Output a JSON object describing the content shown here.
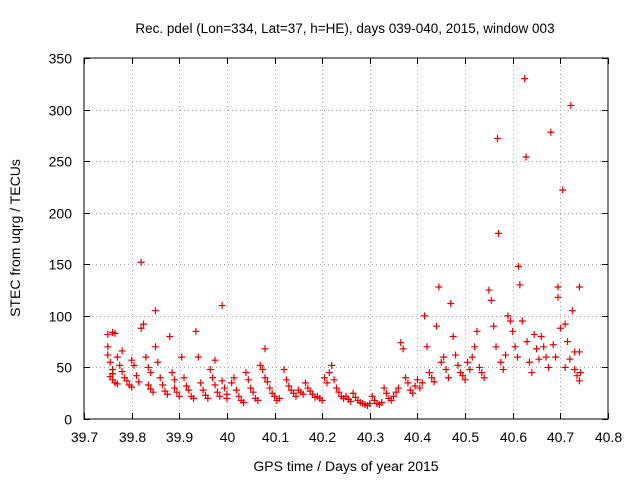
{
  "chart_data": {
    "type": "scatter",
    "title": "Rec. pdel (Lon=334, Lat=37, h=HE), days 039-040, 2015, window 003",
    "xlabel": "GPS time / Days of year 2015",
    "ylabel": "STEC from uqrg / TECUs",
    "xlim": [
      39.7,
      40.8
    ],
    "ylim": [
      0,
      350
    ],
    "xticks": [
      39.7,
      39.8,
      39.9,
      40.0,
      40.1,
      40.2,
      40.3,
      40.4,
      40.5,
      40.6,
      40.7,
      40.8
    ],
    "xtick_labels": [
      "39.7",
      "39.8",
      "39.9",
      "40",
      "40.1",
      "40.2",
      "40.3",
      "40.4",
      "40.5",
      "40.6",
      "40.7",
      "40.8"
    ],
    "yticks": [
      0,
      50,
      100,
      150,
      200,
      250,
      300,
      350
    ],
    "ytick_labels": [
      "0",
      "50",
      "100",
      "150",
      "200",
      "250",
      "300",
      "350"
    ],
    "grid": true,
    "marker": "+",
    "marker_color": "#e00000",
    "series": [
      {
        "name": "STEC",
        "points": [
          [
            39.75,
            82
          ],
          [
            39.75,
            70
          ],
          [
            39.75,
            62
          ],
          [
            39.755,
            55
          ],
          [
            39.76,
            48
          ],
          [
            39.76,
            44
          ],
          [
            39.755,
            41
          ],
          [
            39.76,
            38
          ],
          [
            39.765,
            35
          ],
          [
            39.77,
            34
          ],
          [
            39.76,
            84
          ],
          [
            39.765,
            83
          ],
          [
            39.77,
            60
          ],
          [
            39.775,
            52
          ],
          [
            39.78,
            66
          ],
          [
            39.78,
            46
          ],
          [
            39.785,
            40
          ],
          [
            39.79,
            37
          ],
          [
            39.795,
            33
          ],
          [
            39.8,
            31
          ],
          [
            39.8,
            57
          ],
          [
            39.805,
            52
          ],
          [
            39.81,
            42
          ],
          [
            39.815,
            36
          ],
          [
            39.82,
            152
          ],
          [
            39.82,
            88
          ],
          [
            39.825,
            92
          ],
          [
            39.83,
            60
          ],
          [
            39.835,
            50
          ],
          [
            39.84,
            45
          ],
          [
            39.835,
            33
          ],
          [
            39.84,
            29
          ],
          [
            39.845,
            26
          ],
          [
            39.85,
            105
          ],
          [
            39.85,
            70
          ],
          [
            39.855,
            55
          ],
          [
            39.86,
            40
          ],
          [
            39.865,
            33
          ],
          [
            39.87,
            27
          ],
          [
            39.875,
            24
          ],
          [
            39.88,
            80
          ],
          [
            39.885,
            45
          ],
          [
            39.89,
            38
          ],
          [
            39.89,
            30
          ],
          [
            39.895,
            26
          ],
          [
            39.9,
            22
          ],
          [
            39.905,
            60
          ],
          [
            39.91,
            40
          ],
          [
            39.915,
            32
          ],
          [
            39.92,
            28
          ],
          [
            39.925,
            22
          ],
          [
            39.93,
            20
          ],
          [
            39.935,
            85
          ],
          [
            39.94,
            60
          ],
          [
            39.945,
            35
          ],
          [
            39.95,
            28
          ],
          [
            39.955,
            23
          ],
          [
            39.96,
            20
          ],
          [
            39.965,
            48
          ],
          [
            39.97,
            40
          ],
          [
            39.975,
            33
          ],
          [
            39.975,
            57
          ],
          [
            39.98,
            26
          ],
          [
            39.985,
            22
          ],
          [
            39.99,
            110
          ],
          [
            39.99,
            37
          ],
          [
            39.995,
            30
          ],
          [
            40.0,
            24
          ],
          [
            40.0,
            20
          ],
          [
            40.01,
            35
          ],
          [
            40.015,
            40
          ],
          [
            40.02,
            28
          ],
          [
            40.025,
            22
          ],
          [
            40.03,
            18
          ],
          [
            40.035,
            16
          ],
          [
            40.04,
            45
          ],
          [
            40.045,
            38
          ],
          [
            40.05,
            30
          ],
          [
            40.055,
            26
          ],
          [
            40.06,
            20
          ],
          [
            40.065,
            18
          ],
          [
            40.07,
            52
          ],
          [
            40.075,
            48
          ],
          [
            40.08,
            68
          ],
          [
            40.08,
            40
          ],
          [
            40.085,
            36
          ],
          [
            40.09,
            30
          ],
          [
            40.095,
            25
          ],
          [
            40.1,
            22
          ],
          [
            40.105,
            18
          ],
          [
            40.11,
            20
          ],
          [
            40.12,
            48
          ],
          [
            40.125,
            38
          ],
          [
            40.13,
            32
          ],
          [
            40.135,
            28
          ],
          [
            40.14,
            25
          ],
          [
            40.145,
            22
          ],
          [
            40.15,
            28
          ],
          [
            40.155,
            26
          ],
          [
            40.16,
            24
          ],
          [
            40.165,
            35
          ],
          [
            40.17,
            30
          ],
          [
            40.175,
            27
          ],
          [
            40.18,
            24
          ],
          [
            40.185,
            21
          ],
          [
            40.19,
            22
          ],
          [
            40.195,
            20
          ],
          [
            40.2,
            18
          ],
          [
            40.205,
            40
          ],
          [
            40.21,
            35
          ],
          [
            40.215,
            45
          ],
          [
            40.22,
            52
          ],
          [
            40.225,
            38
          ],
          [
            40.23,
            30
          ],
          [
            40.235,
            26
          ],
          [
            40.24,
            22
          ],
          [
            40.245,
            20
          ],
          [
            40.25,
            22
          ],
          [
            40.255,
            19
          ],
          [
            40.26,
            17
          ],
          [
            40.265,
            25
          ],
          [
            40.27,
            21
          ],
          [
            40.275,
            18
          ],
          [
            40.28,
            16
          ],
          [
            40.285,
            15
          ],
          [
            40.29,
            14
          ],
          [
            40.295,
            13
          ],
          [
            40.3,
            15
          ],
          [
            40.305,
            22
          ],
          [
            40.31,
            18
          ],
          [
            40.315,
            15
          ],
          [
            40.32,
            14
          ],
          [
            40.325,
            16
          ],
          [
            40.33,
            30
          ],
          [
            40.335,
            25
          ],
          [
            40.34,
            20
          ],
          [
            40.345,
            18
          ],
          [
            40.35,
            22
          ],
          [
            40.355,
            26
          ],
          [
            40.36,
            30
          ],
          [
            40.365,
            74
          ],
          [
            40.37,
            68
          ],
          [
            40.375,
            40
          ],
          [
            40.38,
            35
          ],
          [
            40.385,
            28
          ],
          [
            40.39,
            25
          ],
          [
            40.395,
            32
          ],
          [
            40.4,
            38
          ],
          [
            40.405,
            30
          ],
          [
            40.41,
            35
          ],
          [
            40.415,
            100
          ],
          [
            40.42,
            70
          ],
          [
            40.425,
            45
          ],
          [
            40.43,
            40
          ],
          [
            40.435,
            36
          ],
          [
            40.44,
            90
          ],
          [
            40.445,
            128
          ],
          [
            40.45,
            55
          ],
          [
            40.455,
            60
          ],
          [
            40.46,
            48
          ],
          [
            40.465,
            40
          ],
          [
            40.47,
            112
          ],
          [
            40.475,
            80
          ],
          [
            40.48,
            62
          ],
          [
            40.485,
            52
          ],
          [
            40.49,
            45
          ],
          [
            40.495,
            42
          ],
          [
            40.5,
            38
          ],
          [
            40.505,
            55
          ],
          [
            40.51,
            48
          ],
          [
            40.515,
            60
          ],
          [
            40.52,
            70
          ],
          [
            40.525,
            85
          ],
          [
            40.53,
            50
          ],
          [
            40.535,
            45
          ],
          [
            40.54,
            40
          ],
          [
            40.55,
            125
          ],
          [
            40.555,
            115
          ],
          [
            40.56,
            90
          ],
          [
            40.565,
            70
          ],
          [
            40.568,
            272
          ],
          [
            40.57,
            180
          ],
          [
            40.575,
            55
          ],
          [
            40.58,
            48
          ],
          [
            40.585,
            62
          ],
          [
            40.59,
            100
          ],
          [
            40.595,
            95
          ],
          [
            40.6,
            85
          ],
          [
            40.605,
            70
          ],
          [
            40.61,
            60
          ],
          [
            40.612,
            148
          ],
          [
            40.615,
            130
          ],
          [
            40.62,
            95
          ],
          [
            40.625,
            330
          ],
          [
            40.628,
            254
          ],
          [
            40.63,
            75
          ],
          [
            40.635,
            55
          ],
          [
            40.64,
            45
          ],
          [
            40.645,
            82
          ],
          [
            40.65,
            68
          ],
          [
            40.655,
            58
          ],
          [
            40.66,
            80
          ],
          [
            40.665,
            70
          ],
          [
            40.67,
            60
          ],
          [
            40.675,
            50
          ],
          [
            40.68,
            278
          ],
          [
            40.685,
            72
          ],
          [
            40.69,
            60
          ],
          [
            40.695,
            128
          ],
          [
            40.695,
            118
          ],
          [
            40.7,
            88
          ],
          [
            40.705,
            222
          ],
          [
            40.71,
            92
          ],
          [
            40.715,
            75
          ],
          [
            40.72,
            58
          ],
          [
            40.722,
            304
          ],
          [
            40.725,
            105
          ],
          [
            40.73,
            48
          ],
          [
            40.735,
            42
          ],
          [
            40.74,
            128
          ],
          [
            40.74,
            65
          ],
          [
            40.742,
            45
          ],
          [
            40.74,
            37
          ],
          [
            40.73,
            65
          ],
          [
            40.71,
            50
          ]
        ]
      }
    ]
  }
}
